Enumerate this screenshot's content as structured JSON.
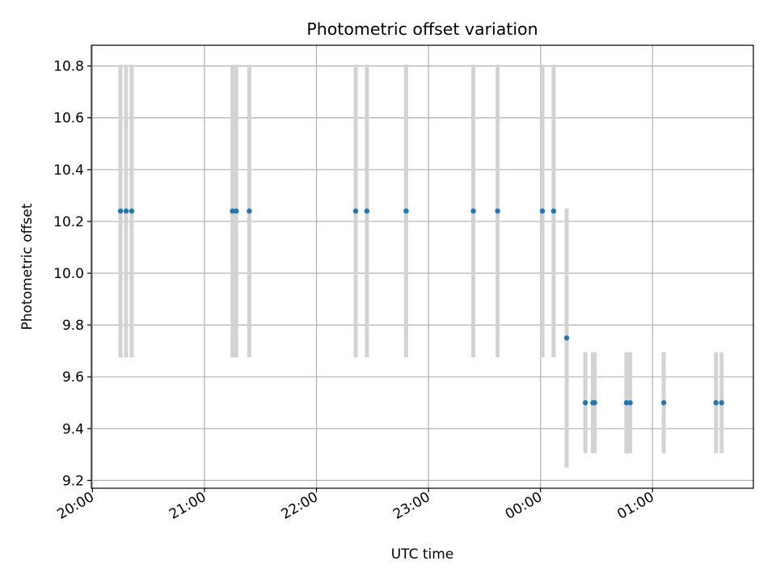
{
  "chart_data": {
    "type": "scatter",
    "title": "Photometric offset variation",
    "xlabel": "UTC time",
    "ylabel": "Photometric offset",
    "x_ticks": [
      "20:00",
      "21:00",
      "22:00",
      "23:00",
      "00:00",
      "01:00"
    ],
    "x_tick_hours": [
      0,
      1,
      2,
      3,
      4,
      5
    ],
    "xlim_hours": [
      -0.01,
      5.9
    ],
    "y_ticks": [
      "9.2",
      "9.4",
      "9.6",
      "9.8",
      "10.0",
      "10.2",
      "10.4",
      "10.6",
      "10.8"
    ],
    "ylim": [
      9.17,
      10.88
    ],
    "grid": true,
    "marker_color": "#1f77b4",
    "errorbar_color": "#d3d3d3",
    "points": [
      {
        "t": "20:15",
        "y": 10.24,
        "err": 0.565
      },
      {
        "t": "20:18",
        "y": 10.24,
        "err": 0.565
      },
      {
        "t": "20:21",
        "y": 10.24,
        "err": 0.565
      },
      {
        "t": "21:15",
        "y": 10.24,
        "err": 0.565
      },
      {
        "t": "21:17",
        "y": 10.24,
        "err": 0.565
      },
      {
        "t": "21:24",
        "y": 10.24,
        "err": 0.565
      },
      {
        "t": "22:21",
        "y": 10.24,
        "err": 0.565
      },
      {
        "t": "22:27",
        "y": 10.24,
        "err": 0.565
      },
      {
        "t": "22:48",
        "y": 10.24,
        "err": 0.565
      },
      {
        "t": "23:24",
        "y": 10.24,
        "err": 0.565
      },
      {
        "t": "23:37",
        "y": 10.24,
        "err": 0.565
      },
      {
        "t": "00:01",
        "y": 10.24,
        "err": 0.565
      },
      {
        "t": "00:07",
        "y": 10.24,
        "err": 0.565
      },
      {
        "t": "00:14",
        "y": 9.75,
        "err": 0.5
      },
      {
        "t": "00:24",
        "y": 9.5,
        "err": 0.195
      },
      {
        "t": "00:28",
        "y": 9.5,
        "err": 0.195
      },
      {
        "t": "00:29",
        "y": 9.5,
        "err": 0.195
      },
      {
        "t": "00:46",
        "y": 9.5,
        "err": 0.195
      },
      {
        "t": "00:48",
        "y": 9.5,
        "err": 0.195
      },
      {
        "t": "01:06",
        "y": 9.5,
        "err": 0.195
      },
      {
        "t": "01:34",
        "y": 9.5,
        "err": 0.195
      },
      {
        "t": "01:37",
        "y": 9.5,
        "err": 0.195
      }
    ]
  }
}
